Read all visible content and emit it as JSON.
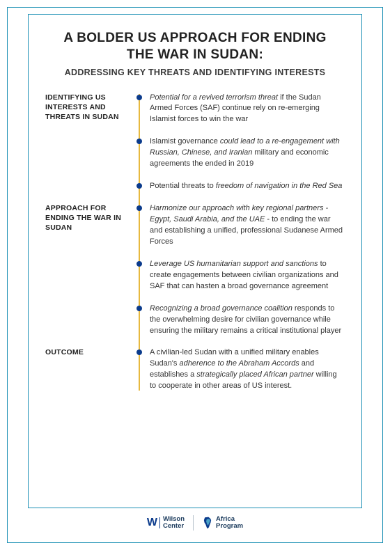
{
  "title_line1": "A BOLDER US APPROACH FOR ENDING",
  "title_line2": "THE WAR IN SUDAN:",
  "subtitle": "ADDRESSING KEY THREATS AND IDENTIFYING INTERESTS",
  "colors": {
    "frame_border": "#1a8fb4",
    "timeline_line": "#e7b93f",
    "bullet": "#0b3b8c",
    "text": "#333333",
    "heading": "#222222"
  },
  "sections": [
    {
      "label": "IDENTIFYING US INTERESTS AND THREATS IN SUDAN",
      "items": [
        {
          "html": "<em>Potential for a revived terrorism threat</em> if the Sudan Armed Forces (SAF) continue rely on re-emerging Islamist forces to win the war"
        },
        {
          "html": "Islamist governance <em>could lead to a re-engagement with Russian, Chinese, and Iranian</em> military and economic agreements the ended in 2019"
        },
        {
          "html": "Potential threats to <em>freedom of navigation in the Red Sea</em>"
        }
      ]
    },
    {
      "label": "APPROACH FOR ENDING THE WAR IN SUDAN",
      "items": [
        {
          "html": "<em>Harmonize our approach with key regional partners - Egypt, Saudi Arabia, and the UAE</em> - to ending the war and establishing a unified, professional Sudanese Armed Forces"
        },
        {
          "html": "<em>Leverage US humanitarian support and sanctions</em> to create engagements between civilian organizations and SAF that can hasten a broad governance agreement"
        },
        {
          "html": "<em>Recognizing a broad governance coalition</em> responds to the overwhelming desire for civilian governance while ensuring the military remains a critical institutional player"
        }
      ]
    },
    {
      "label": "OUTCOME",
      "items": [
        {
          "html": "A civilian-led Sudan with a unified military enables Sudan's <em>adherence to the Abraham Accords</em> and establishes a <em>strategically placed African partner</em> willing to cooperate in other areas of US interest."
        }
      ]
    }
  ],
  "footer": {
    "wilson_name": "Wilson",
    "wilson_sub": "Center",
    "africa_name": "Africa",
    "africa_sub": "Program"
  }
}
